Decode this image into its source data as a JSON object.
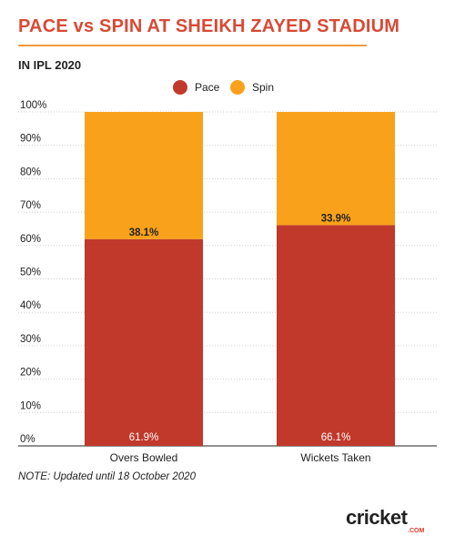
{
  "title": "PACE vs SPIN AT SHEIKH ZAYED STADIUM",
  "subtitle": "IN IPL 2020",
  "note": "NOTE: Updated until 18 October 2020",
  "logo": {
    "main": "cricket",
    "sub": ".COM"
  },
  "colors": {
    "pace": "#c0392b",
    "spin": "#f9a11b",
    "title": "#d84a35",
    "rule": "#f39a3a"
  },
  "chart_data": {
    "type": "bar",
    "stacked": true,
    "categories": [
      "Overs Bowled",
      "Wickets Taken"
    ],
    "series": [
      {
        "name": "Pace",
        "values": [
          61.9,
          66.1
        ],
        "labels": [
          "61.9%",
          "66.1%"
        ]
      },
      {
        "name": "Spin",
        "values": [
          38.1,
          33.9
        ],
        "labels": [
          "38.1%",
          "33.9%"
        ]
      }
    ],
    "ylim": [
      0,
      100
    ],
    "yticks": [
      "0%",
      "10%",
      "20%",
      "30%",
      "40%",
      "50%",
      "60%",
      "70%",
      "80%",
      "90%",
      "100%"
    ],
    "legend": "top-center",
    "grid": true
  }
}
